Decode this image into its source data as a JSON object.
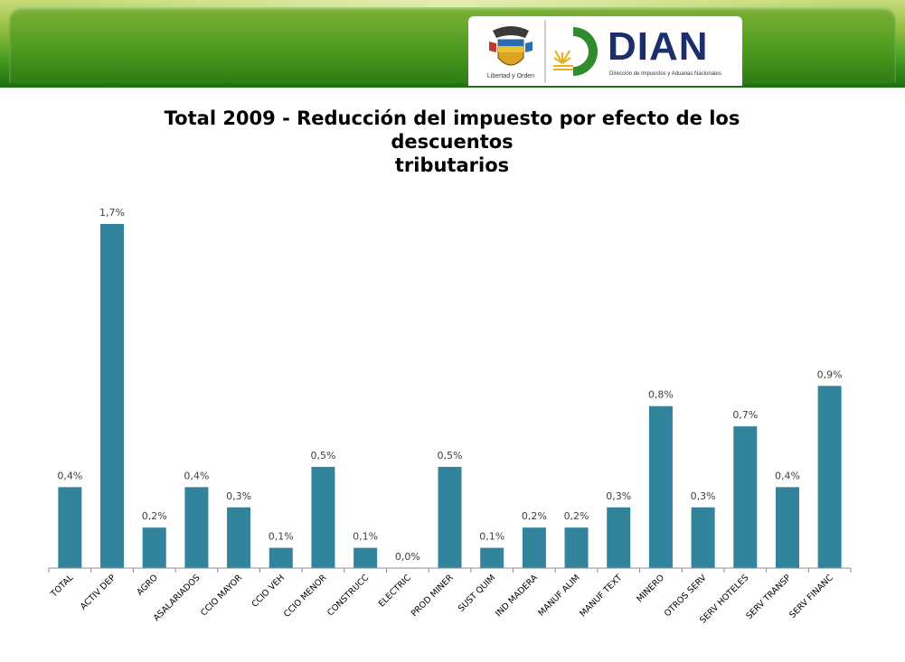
{
  "header": {
    "crest_caption": "Libertad y Orden",
    "logo_text": "DIAN",
    "logo_subtitle": "Dirección de Impuestos y Aduanas Nacionales"
  },
  "chart_data": {
    "type": "bar",
    "title": "Total 2009 - Reducción del impuesto por efecto de los descuentos tributarios",
    "xlabel": "",
    "ylabel": "",
    "categories": [
      "TOTAL",
      "ACTIV DEP",
      "AGRO",
      "ASALARIADOS",
      "CCIO MAYOR",
      "CCIO VEH",
      "CCIO MENOR",
      "CONSTRUCC",
      "ELECTRIC",
      "PROD MINER",
      "SUST QUIM",
      "IND MADERA",
      "MANUF ALIM",
      "MANUF TEXT",
      "MINERO",
      "OTROS SERV",
      "SERV HOTELES",
      "SERV TRANSP",
      "SERV FINANC"
    ],
    "values": [
      0.4,
      1.7,
      0.2,
      0.4,
      0.3,
      0.1,
      0.5,
      0.1,
      0.0,
      0.5,
      0.1,
      0.2,
      0.2,
      0.3,
      0.8,
      0.3,
      0.7,
      0.4,
      0.9
    ],
    "labels": [
      "0,4%",
      "1,7%",
      "0,2%",
      "0,4%",
      "0,3%",
      "0,1%",
      "0,5%",
      "0,1%",
      "0,0%",
      "0,5%",
      "0,1%",
      "0,2%",
      "0,2%",
      "0,3%",
      "0,8%",
      "0,3%",
      "0,7%",
      "0,4%",
      "0,9%"
    ],
    "bar_color": "#31849b",
    "grid": false,
    "legend": "none"
  }
}
